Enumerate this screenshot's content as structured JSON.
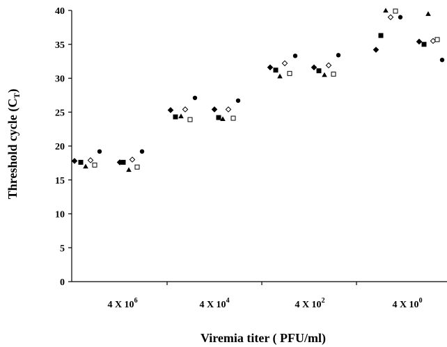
{
  "chart_data": {
    "type": "scatter",
    "title": "",
    "xlabel": "Viremia titer ( PFU/ml)",
    "ylabel": {
      "main": "Threshold cycle (C",
      "sub": "T",
      "close": ")"
    },
    "ylim": [
      0,
      40
    ],
    "yticks": [
      "0",
      "5",
      "10",
      "15",
      "20",
      "25",
      "30",
      "35",
      "40"
    ],
    "groups": [
      {
        "base": "4 X 10",
        "exp": "6"
      },
      {
        "base": "4 X 10",
        "exp": "4"
      },
      {
        "base": "4 X 10",
        "exp": "2"
      },
      {
        "base": "4 X 10",
        "exp": "0"
      }
    ],
    "grid": false,
    "legend": "none",
    "series": [
      {
        "marker": "filled-diamond",
        "values": [
          [
            17.8,
            17.6
          ],
          [
            25.3,
            25.4
          ],
          [
            31.6,
            31.6
          ],
          [
            34.2,
            35.4
          ]
        ]
      },
      {
        "marker": "filled-square",
        "values": [
          [
            17.6,
            17.6
          ],
          [
            24.3,
            24.2
          ],
          [
            31.2,
            31.1
          ],
          [
            36.3,
            35.0
          ]
        ]
      },
      {
        "marker": "filled-triangle",
        "values": [
          [
            17.0,
            16.5
          ],
          [
            24.4,
            24.0
          ],
          [
            30.3,
            30.5
          ],
          [
            40.0,
            39.5
          ]
        ]
      },
      {
        "marker": "open-diamond",
        "values": [
          [
            17.9,
            18.0
          ],
          [
            25.4,
            25.4
          ],
          [
            32.2,
            31.9
          ],
          [
            39.0,
            35.5
          ]
        ]
      },
      {
        "marker": "open-square",
        "values": [
          [
            17.2,
            16.9
          ],
          [
            23.9,
            24.1
          ],
          [
            30.7,
            30.6
          ],
          [
            39.9,
            35.7
          ]
        ]
      },
      {
        "marker": "filled-circle",
        "values": [
          [
            19.2,
            19.2
          ],
          [
            27.1,
            26.7
          ],
          [
            33.3,
            33.4
          ],
          [
            39.0,
            32.7
          ]
        ]
      }
    ]
  }
}
